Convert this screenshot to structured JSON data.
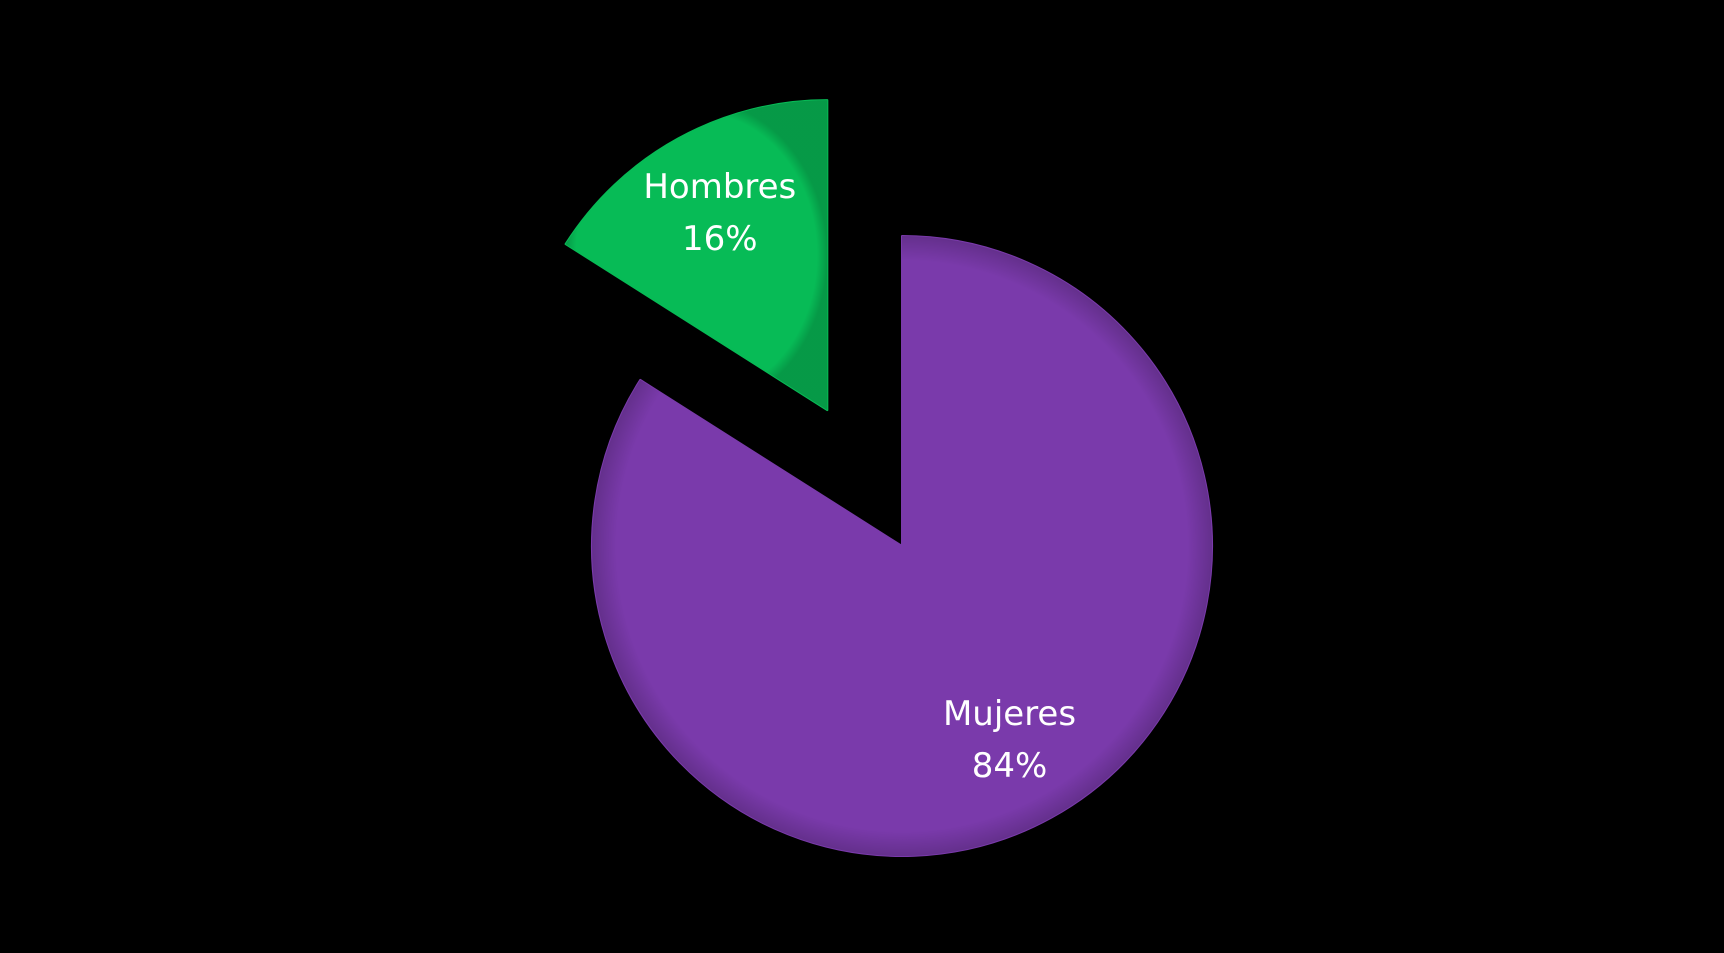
{
  "chart_data": {
    "type": "pie",
    "categories": [
      "Mujeres",
      "Hombres"
    ],
    "values": [
      84,
      16
    ],
    "value_labels": [
      "84%",
      "16%"
    ],
    "colors": [
      "#7a3aab",
      "#07bb56"
    ],
    "explode": [
      false,
      true
    ]
  }
}
